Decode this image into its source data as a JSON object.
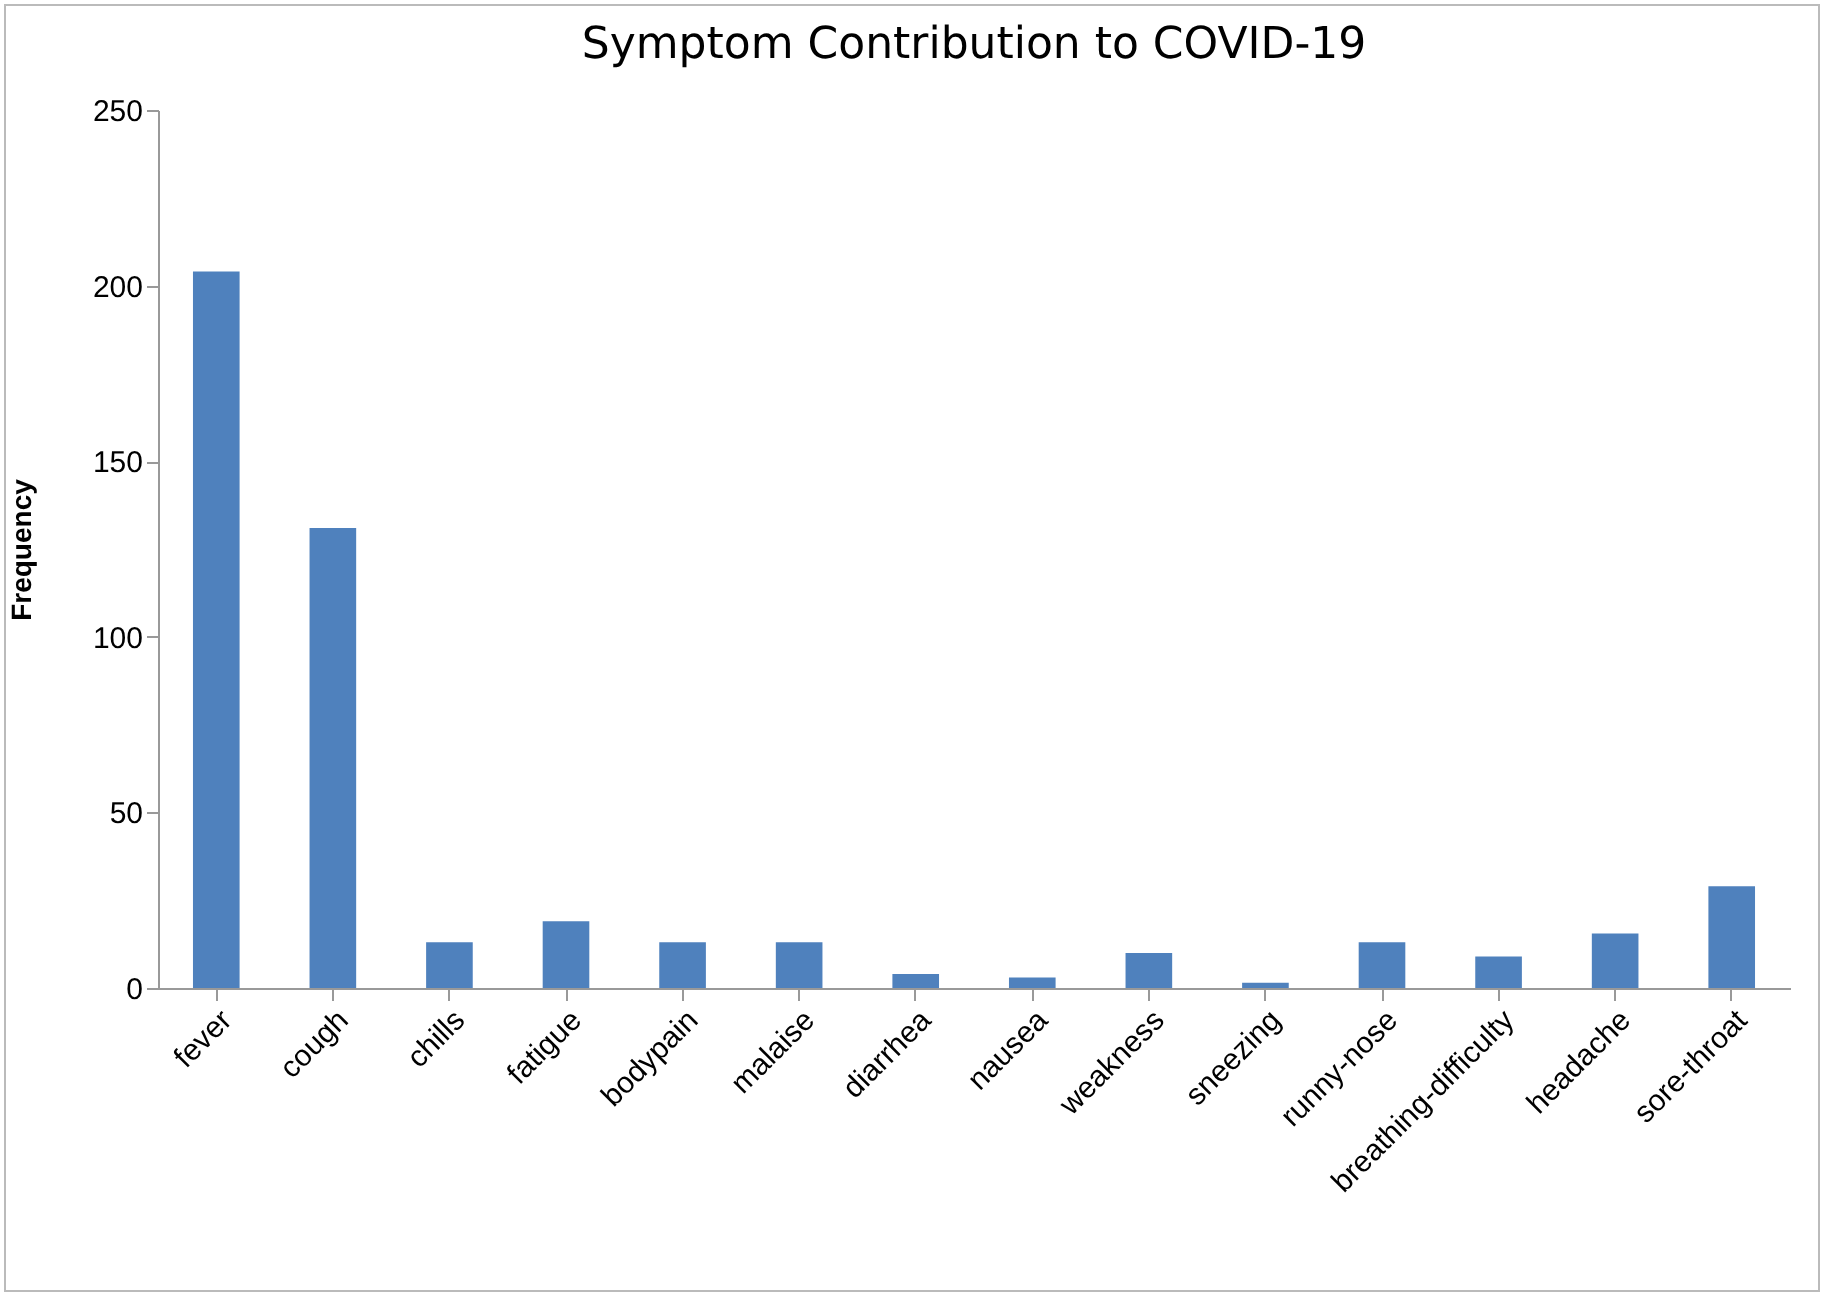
{
  "chart_data": {
    "type": "bar",
    "title": "Symptom Contribution to COVID-19",
    "ylabel": "Frequency",
    "categories": [
      "fever",
      "cough",
      "chills",
      "fatigue",
      "bodypain",
      "malaise",
      "diarrhea",
      "nausea",
      "weakness",
      "sneezing",
      "runny-nose",
      "breathing-difficulty",
      "headache",
      "sore-throat"
    ],
    "values": [
      204,
      131,
      13,
      19,
      13,
      13,
      4,
      3,
      10,
      1.5,
      13,
      9,
      15.5,
      29
    ],
    "color": "#4f81bd",
    "ylim": [
      0,
      250
    ],
    "yticks": [
      0,
      50,
      100,
      150,
      200,
      250
    ],
    "grid": false,
    "legend": false
  }
}
